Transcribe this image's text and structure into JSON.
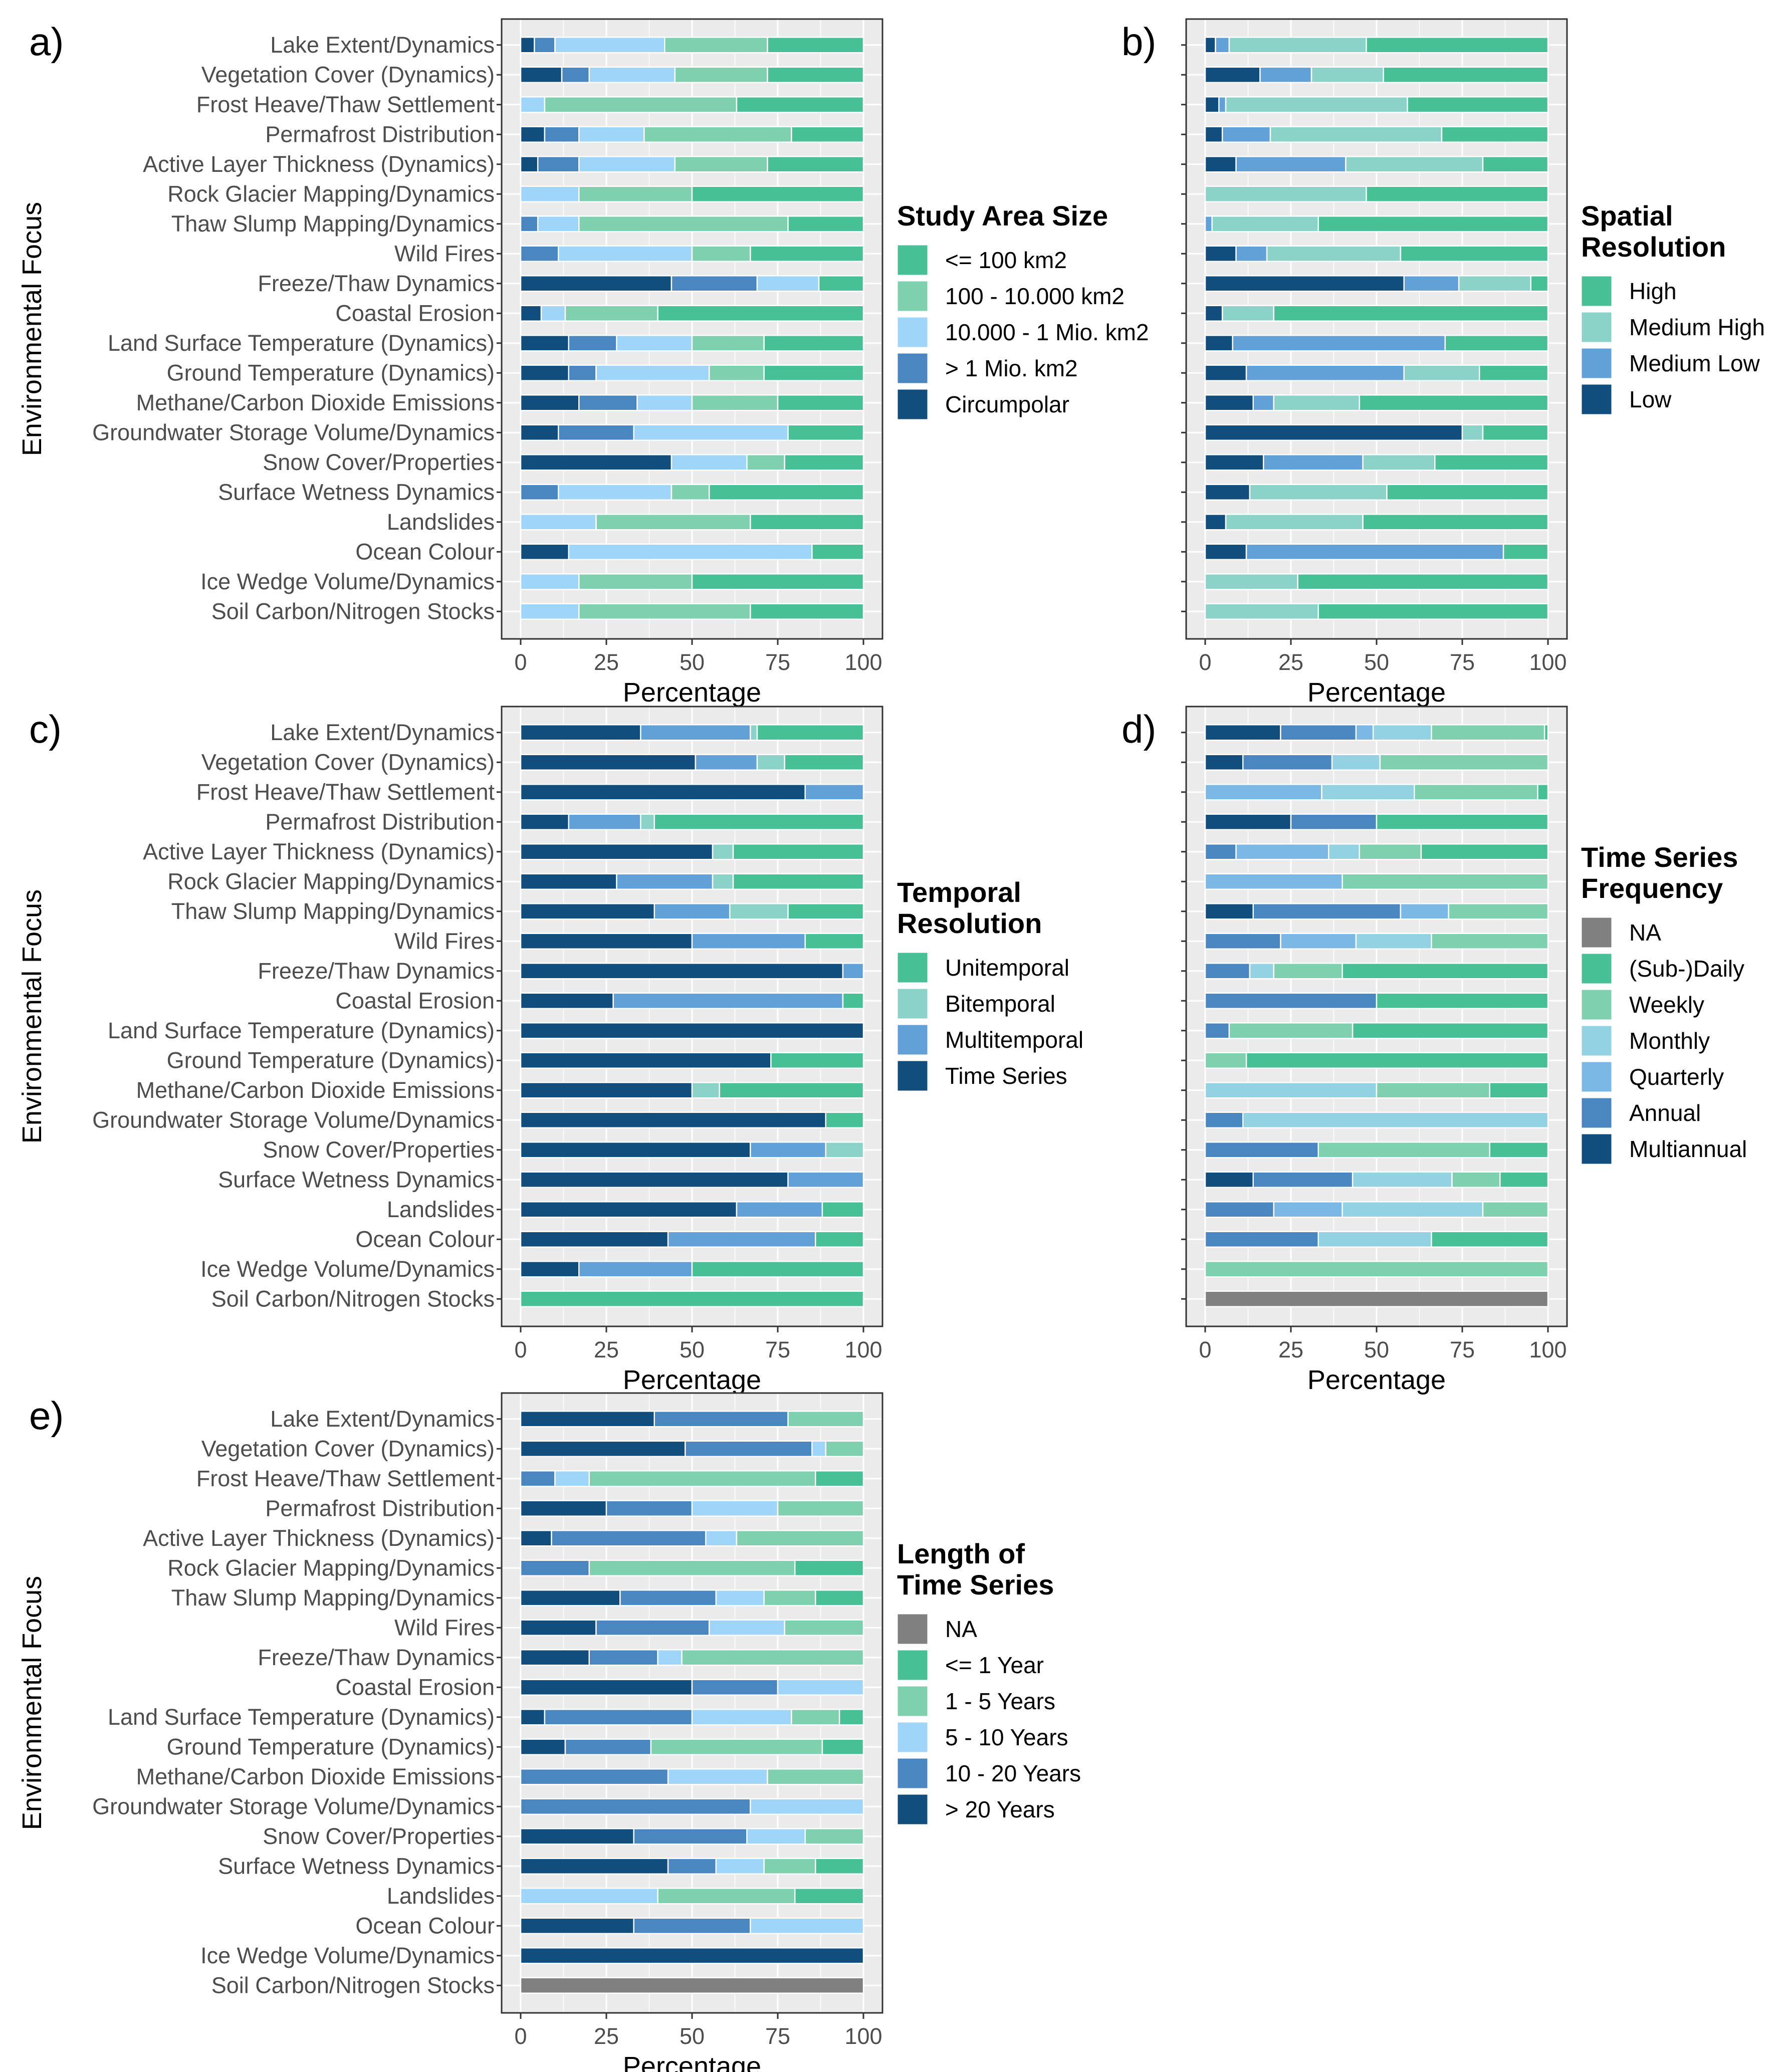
{
  "figure": {
    "y_axis_title": "Environmental Focus",
    "x_axis_title": "Percentage"
  },
  "colors": {
    "panel_bg": "#ebebeb",
    "grid": "#ffffff",
    "c_green": "#48c095",
    "c_mint": "#7fd0af",
    "c_teal_light": "#8bd3c9",
    "c_sky": "#9fd5f8",
    "c_mid_blue": "#4a87c0",
    "c_steel": "#62a1d7",
    "c_navy": "#114e7e",
    "c_ice": "#93d2e2",
    "c_quarterly": "#7cb8e6",
    "c_na": "#808080"
  },
  "chart_data": [
    {
      "panel": "a)",
      "type": "bar",
      "orientation": "horizontal",
      "stacked": true,
      "xlim": [
        0,
        100
      ],
      "xticks": [
        "0",
        "25",
        "50",
        "75",
        "100"
      ],
      "xlabel": "Percentage",
      "ylabel": "Environmental Focus",
      "categories": [
        "Lake Extent/Dynamics",
        "Vegetation Cover (Dynamics)",
        "Frost Heave/Thaw Settlement",
        "Permafrost Distribution",
        "Active Layer Thickness (Dynamics)",
        "Rock Glacier Mapping/Dynamics",
        "Thaw Slump Mapping/Dynamics",
        "Wild Fires",
        "Freeze/Thaw Dynamics",
        "Coastal Erosion",
        "Land Surface Temperature (Dynamics)",
        "Ground Temperature (Dynamics)",
        "Methane/Carbon Dioxide Emissions",
        "Groundwater Storage Volume/Dynamics",
        "Snow Cover/Properties",
        "Surface Wetness Dynamics",
        "Landslides",
        "Ocean Colour",
        "Ice Wedge Volume/Dynamics",
        "Soil Carbon/Nitrogen Stocks"
      ],
      "legend_title": [
        "Study Area Size"
      ],
      "series": [
        {
          "name": "Circumpolar",
          "color": "#114e7e",
          "values": [
            4,
            12,
            0,
            7,
            5,
            0,
            0,
            0,
            44,
            6,
            14,
            14,
            17,
            11,
            44,
            0,
            0,
            14,
            0,
            0
          ]
        },
        {
          "name": "> 1 Mio. km2",
          "color": "#4a87c0",
          "values": [
            6,
            8,
            0,
            10,
            12,
            0,
            5,
            11,
            25,
            0,
            14,
            8,
            17,
            22,
            0,
            11,
            0,
            0,
            0,
            0
          ]
        },
        {
          "name": "10.000 - 1 Mio. km2",
          "color": "#9fd5f8",
          "values": [
            32,
            25,
            7,
            19,
            28,
            17,
            12,
            39,
            18,
            7,
            22,
            33,
            16,
            45,
            22,
            33,
            22,
            71,
            17,
            17
          ]
        },
        {
          "name": "100 - 10.000 km2",
          "color": "#7fd0af",
          "values": [
            30,
            27,
            56,
            43,
            27,
            33,
            61,
            17,
            0,
            27,
            21,
            16,
            25,
            0,
            11,
            11,
            45,
            0,
            33,
            50
          ]
        },
        {
          "name": "<= 100 km2",
          "color": "#48c095",
          "values": [
            28,
            28,
            37,
            21,
            28,
            50,
            22,
            33,
            13,
            60,
            29,
            29,
            25,
            22,
            23,
            45,
            33,
            15,
            50,
            33
          ]
        }
      ]
    },
    {
      "panel": "b)",
      "type": "bar",
      "orientation": "horizontal",
      "stacked": true,
      "xlim": [
        0,
        100
      ],
      "xticks": [
        "0",
        "25",
        "50",
        "75",
        "100"
      ],
      "xlabel": "Percentage",
      "legend_title": [
        "Spatial",
        "Resolution"
      ],
      "series": [
        {
          "name": "Low",
          "color": "#114e7e",
          "values": [
            3,
            16,
            4,
            5,
            9,
            0,
            0,
            9,
            58,
            5,
            8,
            12,
            14,
            75,
            17,
            13,
            6,
            12,
            0,
            0
          ]
        },
        {
          "name": "Medium Low",
          "color": "#62a1d7",
          "values": [
            4,
            15,
            2,
            14,
            32,
            0,
            2,
            9,
            16,
            0,
            62,
            46,
            6,
            0,
            29,
            0,
            0,
            75,
            0,
            0
          ]
        },
        {
          "name": "Medium High",
          "color": "#8bd3c9",
          "values": [
            40,
            21,
            53,
            50,
            40,
            47,
            31,
            39,
            21,
            15,
            0,
            22,
            25,
            6,
            21,
            40,
            40,
            0,
            27,
            33
          ]
        },
        {
          "name": "High",
          "color": "#48c095",
          "values": [
            53,
            48,
            41,
            31,
            19,
            53,
            67,
            43,
            5,
            80,
            30,
            20,
            55,
            19,
            33,
            47,
            54,
            13,
            73,
            67
          ]
        }
      ]
    },
    {
      "panel": "c)",
      "type": "bar",
      "orientation": "horizontal",
      "stacked": true,
      "xlim": [
        0,
        100
      ],
      "xticks": [
        "0",
        "25",
        "50",
        "75",
        "100"
      ],
      "xlabel": "Percentage",
      "ylabel": "Environmental Focus",
      "legend_title": [
        "Temporal",
        "Resolution"
      ],
      "series": [
        {
          "name": "Time Series",
          "color": "#114e7e",
          "values": [
            35,
            51,
            83,
            14,
            56,
            28,
            39,
            50,
            94,
            27,
            100,
            73,
            50,
            89,
            67,
            78,
            63,
            43,
            17,
            0
          ]
        },
        {
          "name": "Multitemporal",
          "color": "#62a1d7",
          "values": [
            32,
            18,
            17,
            21,
            0,
            28,
            22,
            33,
            6,
            67,
            0,
            0,
            0,
            0,
            22,
            22,
            25,
            43,
            33,
            0
          ]
        },
        {
          "name": "Bitemporal",
          "color": "#8bd3c9",
          "values": [
            2,
            8,
            0,
            4,
            6,
            6,
            17,
            0,
            0,
            0,
            0,
            0,
            8,
            0,
            11,
            0,
            0,
            0,
            0,
            0
          ]
        },
        {
          "name": "Unitemporal",
          "color": "#48c095",
          "values": [
            31,
            23,
            0,
            61,
            38,
            38,
            22,
            17,
            0,
            6,
            0,
            27,
            42,
            11,
            0,
            0,
            12,
            14,
            50,
            100
          ]
        }
      ]
    },
    {
      "panel": "d)",
      "type": "bar",
      "orientation": "horizontal",
      "stacked": true,
      "xlim": [
        0,
        100
      ],
      "xticks": [
        "0",
        "25",
        "50",
        "75",
        "100"
      ],
      "xlabel": "Percentage",
      "legend_title": [
        "Time Series",
        "Frequency"
      ],
      "series": [
        {
          "name": "Multiannual",
          "color": "#114e7e",
          "values": [
            22,
            11,
            0,
            25,
            0,
            0,
            14,
            0,
            0,
            0,
            0,
            0,
            0,
            0,
            0,
            14,
            0,
            0,
            0,
            0
          ]
        },
        {
          "name": "Annual",
          "color": "#4a87c0",
          "values": [
            22,
            26,
            0,
            25,
            9,
            0,
            43,
            22,
            13,
            50,
            7,
            0,
            0,
            11,
            33,
            29,
            20,
            33,
            0,
            0
          ]
        },
        {
          "name": "Quarterly",
          "color": "#7cb8e6",
          "values": [
            5,
            0,
            34,
            0,
            27,
            40,
            14,
            22,
            0,
            0,
            0,
            0,
            0,
            0,
            0,
            0,
            20,
            0,
            0,
            0
          ]
        },
        {
          "name": "Monthly",
          "color": "#93d2e2",
          "values": [
            17,
            14,
            27,
            0,
            9,
            0,
            0,
            22,
            7,
            0,
            0,
            0,
            50,
            89,
            0,
            29,
            41,
            33,
            0,
            0
          ]
        },
        {
          "name": "Weekly",
          "color": "#7fd0af",
          "values": [
            33,
            49,
            36,
            0,
            18,
            60,
            29,
            34,
            20,
            0,
            36,
            12,
            33,
            0,
            50,
            14,
            19,
            0,
            100,
            0
          ]
        },
        {
          "name": "(Sub-)Daily",
          "color": "#48c095",
          "values": [
            1,
            0,
            3,
            50,
            37,
            0,
            0,
            0,
            60,
            50,
            57,
            88,
            17,
            0,
            17,
            14,
            0,
            34,
            0,
            0
          ]
        },
        {
          "name": "NA",
          "color": "#808080",
          "values": [
            0,
            0,
            0,
            0,
            0,
            0,
            0,
            0,
            0,
            0,
            0,
            0,
            0,
            0,
            0,
            0,
            0,
            0,
            0,
            100
          ]
        }
      ]
    },
    {
      "panel": "e)",
      "type": "bar",
      "orientation": "horizontal",
      "stacked": true,
      "xlim": [
        0,
        100
      ],
      "xticks": [
        "0",
        "25",
        "50",
        "75",
        "100"
      ],
      "xlabel": "Percentage",
      "ylabel": "Environmental Focus",
      "legend_title": [
        "Length of",
        "Time Series"
      ],
      "series": [
        {
          "name": "> 20 Years",
          "color": "#114e7e",
          "values": [
            39,
            48,
            0,
            25,
            9,
            0,
            29,
            22,
            20,
            50,
            7,
            13,
            0,
            0,
            33,
            43,
            0,
            33,
            100,
            0
          ]
        },
        {
          "name": "10 - 20 Years",
          "color": "#4a87c0",
          "values": [
            39,
            37,
            10,
            25,
            45,
            20,
            28,
            33,
            20,
            25,
            43,
            25,
            43,
            67,
            33,
            14,
            0,
            34,
            0,
            0
          ]
        },
        {
          "name": "5 - 10 Years",
          "color": "#9fd5f8",
          "values": [
            0,
            4,
            10,
            25,
            9,
            0,
            14,
            22,
            7,
            25,
            29,
            0,
            29,
            33,
            17,
            14,
            40,
            33,
            0,
            0
          ]
        },
        {
          "name": "1 - 5 Years",
          "color": "#7fd0af",
          "values": [
            22,
            11,
            66,
            25,
            37,
            60,
            15,
            23,
            53,
            0,
            14,
            50,
            28,
            0,
            17,
            15,
            40,
            0,
            0,
            0
          ]
        },
        {
          "name": "<= 1 Year",
          "color": "#48c095",
          "values": [
            0,
            0,
            14,
            0,
            0,
            20,
            14,
            0,
            0,
            0,
            7,
            12,
            0,
            0,
            0,
            14,
            20,
            0,
            0,
            0
          ]
        },
        {
          "name": "NA",
          "color": "#808080",
          "values": [
            0,
            0,
            0,
            0,
            0,
            0,
            0,
            0,
            0,
            0,
            0,
            0,
            0,
            0,
            0,
            0,
            0,
            0,
            0,
            100
          ]
        }
      ]
    }
  ]
}
